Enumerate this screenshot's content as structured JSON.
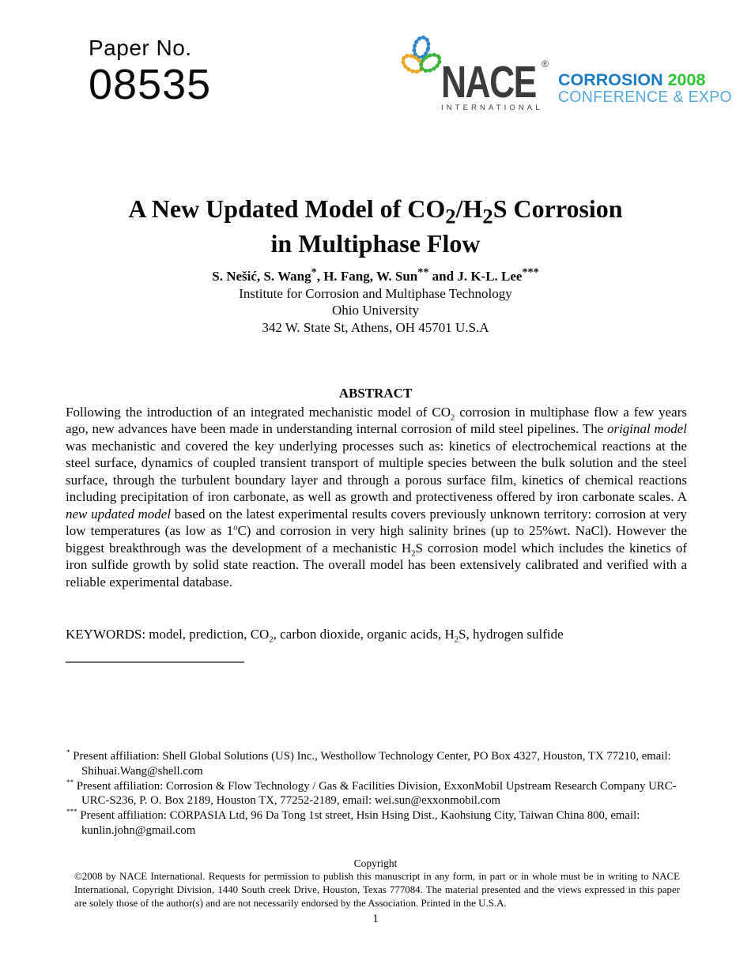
{
  "header": {
    "paper_no_label": "Paper No.",
    "paper_no_value": "08535",
    "logo": {
      "nace": "NACE",
      "registered": "®",
      "international": "INTERNATIONAL",
      "corrosion": "CORROSION",
      "year": "2008",
      "conference": "CONFERENCE & EXPO",
      "colors": {
        "nace_dark": "#3b3b3d",
        "corrosion_blue": "#1d7cc3",
        "year_green": "#2fc434",
        "conference_blue": "#55a9db",
        "knot_blue": "#2f86ca",
        "knot_green": "#3cb53d",
        "knot_orange": "#e9a81f"
      }
    }
  },
  "title": {
    "line1": [
      {
        "t": "A New Updated Model of CO"
      },
      {
        "t": "2",
        "s": "sub"
      },
      {
        "t": "/H"
      },
      {
        "t": "2",
        "s": "sub"
      },
      {
        "t": "S Corrosion"
      }
    ],
    "line2": "in Multiphase Flow"
  },
  "authors": [
    {
      "t": "S. Nešić, S. Wang"
    },
    {
      "t": "*",
      "s": "sup"
    },
    {
      "t": ", H. Fang, W. Sun"
    },
    {
      "t": "**",
      "s": "sup"
    },
    {
      "t": " and J. K-L. Lee"
    },
    {
      "t": "***",
      "s": "sup"
    }
  ],
  "affiliation": {
    "institute": "Institute for Corrosion and Multiphase Technology",
    "university": "Ohio University",
    "address": "342 W. State St, Athens, OH 45701 U.S.A"
  },
  "abstract": {
    "heading": "ABSTRACT",
    "body": [
      {
        "t": "Following the introduction of an integrated mechanistic model of CO"
      },
      {
        "t": "2",
        "s": "sub"
      },
      {
        "t": " corrosion in multiphase flow a few years ago, new advances have been made in understanding internal corrosion of mild steel pipelines. The "
      },
      {
        "t": "original model",
        "s": "i"
      },
      {
        "t": " was mechanistic and covered the key underlying processes such as: kinetics of electrochemical reactions at the steel surface, dynamics of coupled transient transport of multiple species between the bulk solution and the steel surface, through the turbulent boundary layer and through a porous surface film, kinetics of chemical reactions including precipitation of iron carbonate, as well as growth and protectiveness offered by iron carbonate scales. A "
      },
      {
        "t": "new updated model",
        "s": "i"
      },
      {
        "t": " based on the latest experimental results covers previously unknown territory: corrosion at very low temperatures (as low as 1"
      },
      {
        "t": "o",
        "s": "sup"
      },
      {
        "t": "C) and corrosion in very high salinity brines (up to 25%wt. NaCl). However the biggest breakthrough was the development of a mechanistic H"
      },
      {
        "t": "2",
        "s": "sub"
      },
      {
        "t": "S corrosion model which includes the kinetics of iron sulfide growth by solid state reaction. The overall model has been extensively calibrated and verified with a reliable experimental database."
      }
    ]
  },
  "keywords": [
    {
      "t": "KEYWORDS: model, prediction, CO"
    },
    {
      "t": "2",
      "s": "sub"
    },
    {
      "t": ", carbon dioxide, organic acids, H"
    },
    {
      "t": "2",
      "s": "sub"
    },
    {
      "t": "S, hydrogen sulfide"
    }
  ],
  "footnotes": [
    {
      "marker": "*",
      "segments": [
        {
          "t": "*",
          "s": "sup"
        },
        {
          "t": " Present affiliation: Shell Global Solutions (US) Inc., Westhollow Technology Center, PO Box 4327, Houston, TX 77210, email: Shihuai.Wang@shell.com"
        }
      ]
    },
    {
      "marker": "**",
      "segments": [
        {
          "t": "**",
          "s": "sup"
        },
        {
          "t": " Present affiliation: Corrosion & Flow Technology / Gas & Facilities Division, ExxonMobil Upstream Research Company URC-URC-S236, P. O. Box 2189, Houston TX, 77252-2189, email: wei.sun@exxonmobil.com"
        }
      ]
    },
    {
      "marker": "***",
      "segments": [
        {
          "t": "***",
          "s": "sup"
        },
        {
          "t": " Present affiliation: CORPASIA Ltd, 96 Da Tong 1st street, Hsin Hsing Dist., Kaohsiung City, Taiwan China 800, email: kunlin.john@gmail.com"
        }
      ]
    }
  ],
  "copyright": {
    "heading": "Copyright",
    "body": "©2008 by NACE International.  Requests for permission to publish this manuscript in any form, in part or in whole must be in writing to NACE International, Copyright Division, 1440 South creek Drive, Houston, Texas 777084.  The material presented and the views expressed in this paper are solely those of the author(s) and are not necessarily endorsed by the Association.  Printed in the U.S.A."
  },
  "page_number": "1"
}
